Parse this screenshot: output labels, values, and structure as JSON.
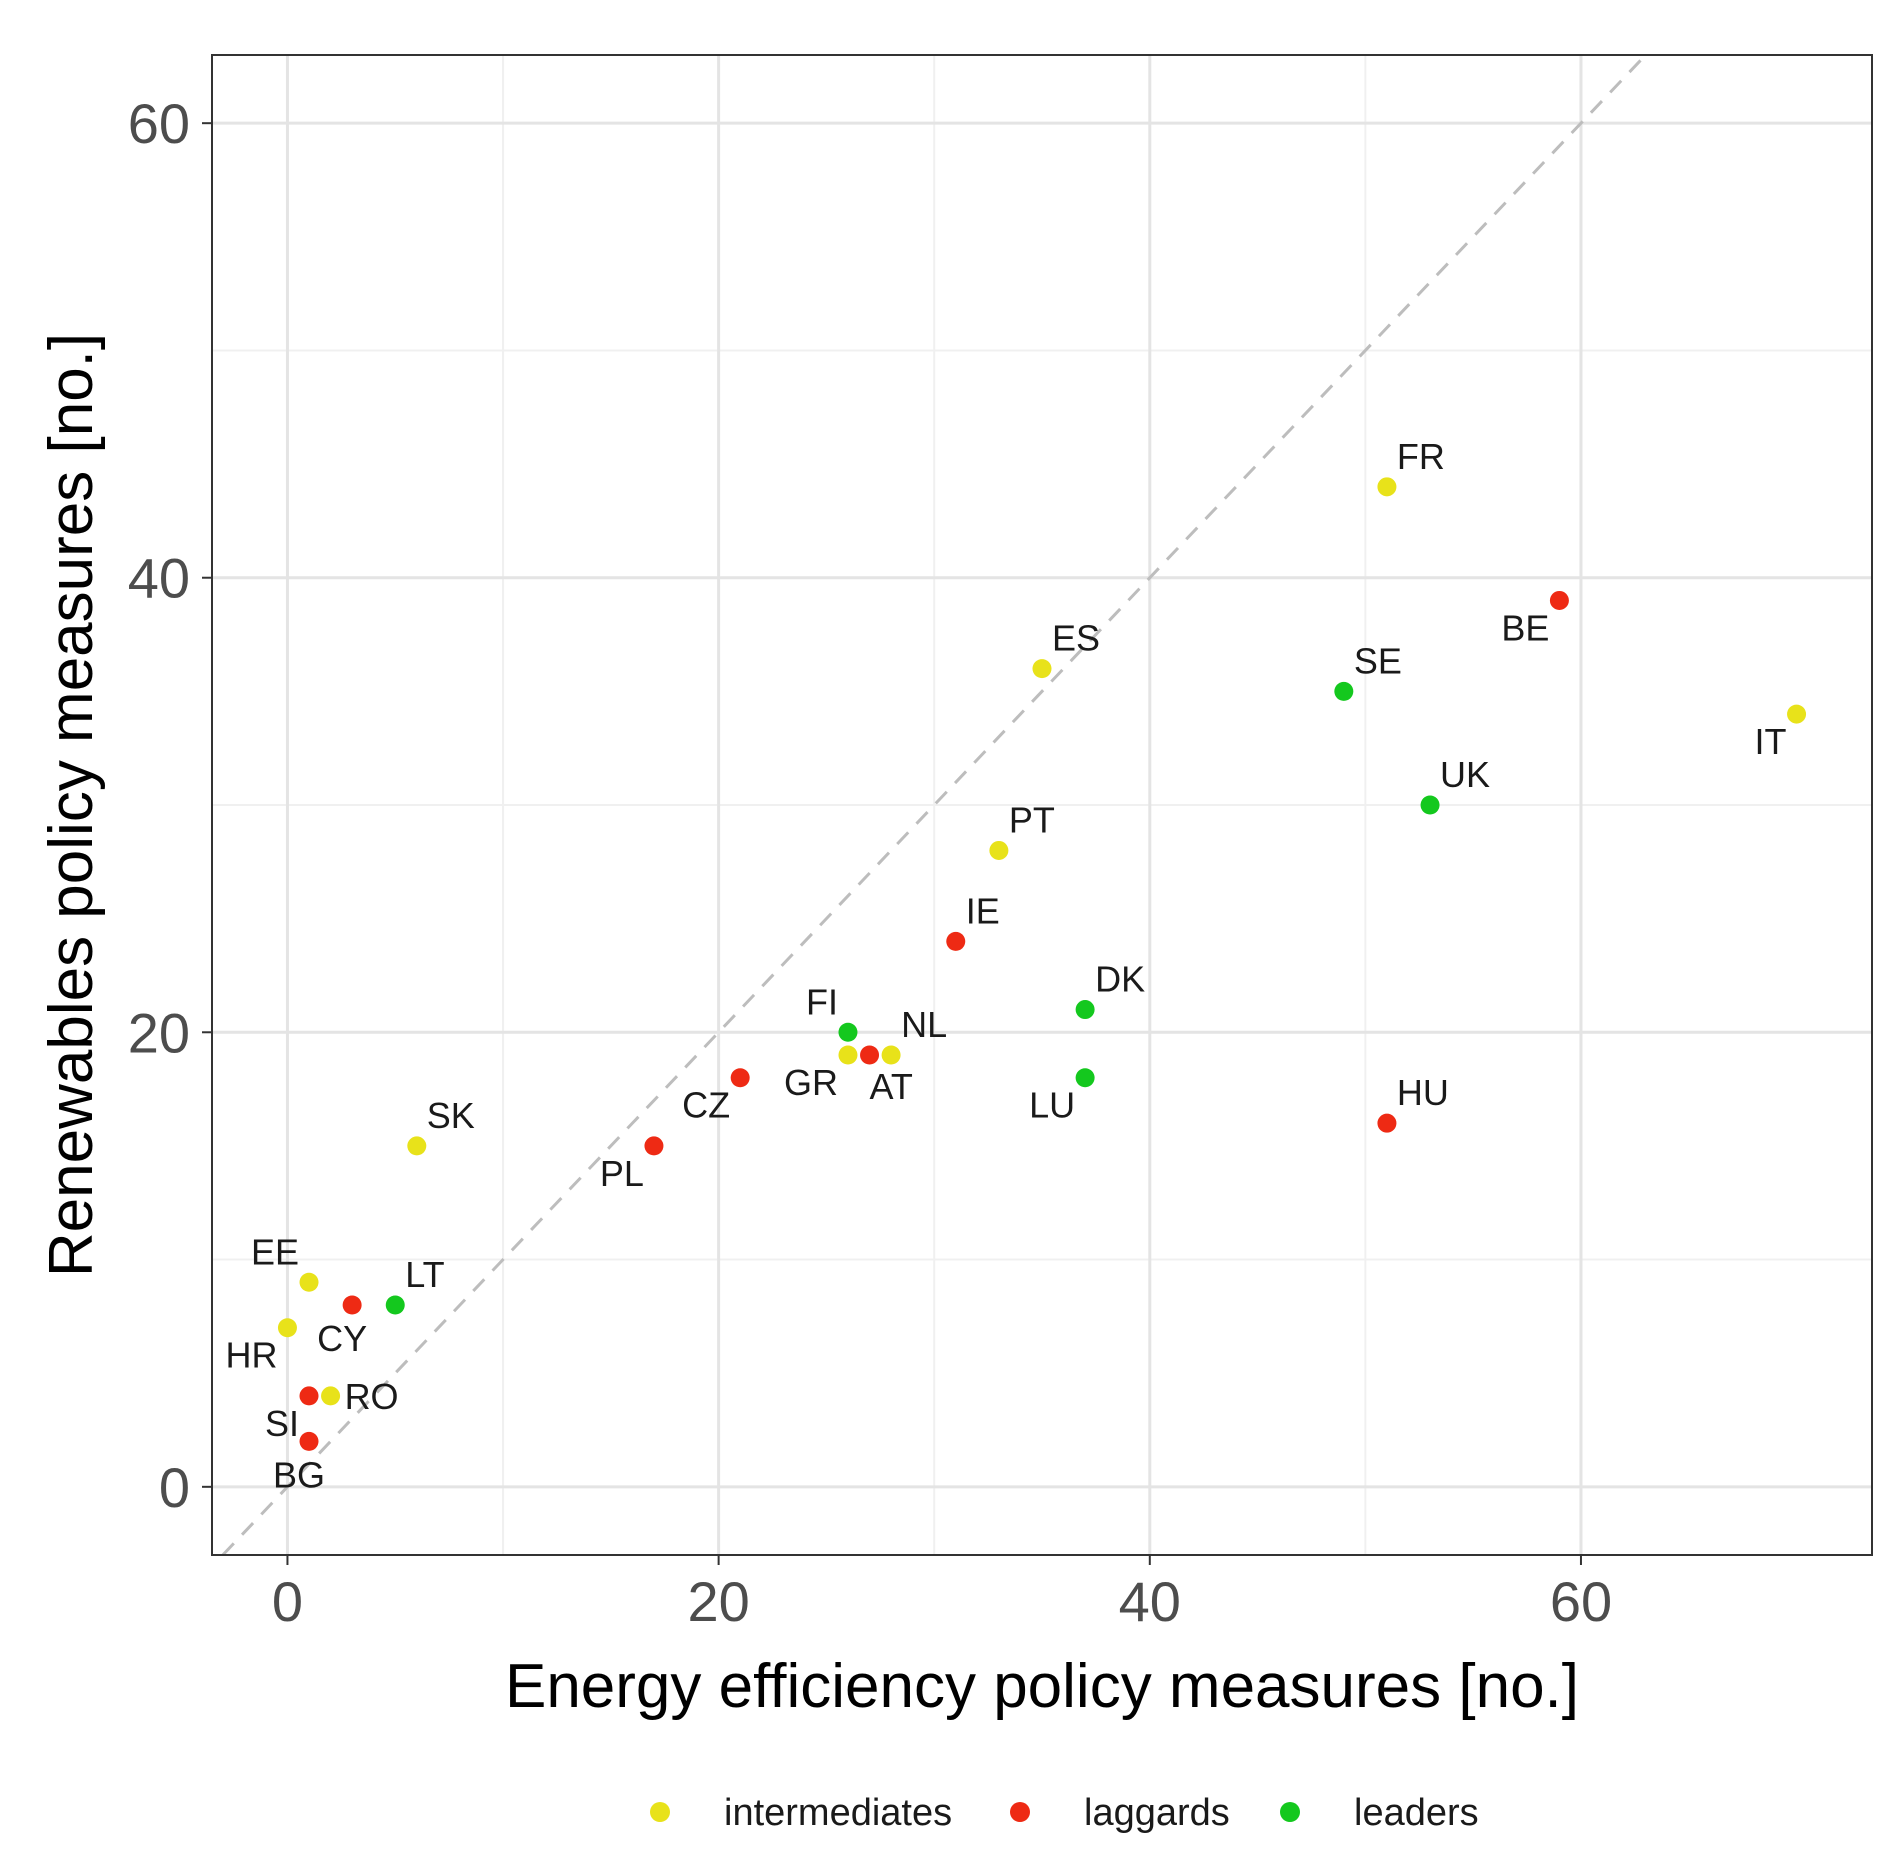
{
  "chart_data": {
    "type": "scatter",
    "title": "",
    "xlabel": "Energy efficiency policy measures [no.]",
    "ylabel": "Renewables policy measures [no.]",
    "xlim": [
      -3.5,
      73.5
    ],
    "ylim": [
      -3,
      63
    ],
    "x_ticks": [
      0,
      20,
      40,
      60
    ],
    "y_ticks": [
      0,
      20,
      40,
      60
    ],
    "x_tick_labels": [
      "0",
      "20",
      "40",
      "60"
    ],
    "y_tick_labels": [
      "0",
      "20",
      "40",
      "60"
    ],
    "grid": true,
    "reference_line": {
      "type": "identity",
      "style": "dashed",
      "color": "#bdbdbd"
    },
    "colors": {
      "intermediates": "#e8e21a",
      "laggards": "#ee2a14",
      "leaders": "#14c81e"
    },
    "legend": {
      "position": "bottom",
      "entries": [
        {
          "name": "intermediates",
          "color": "#e8e21a"
        },
        {
          "name": "laggards",
          "color": "#ee2a14"
        },
        {
          "name": "leaders",
          "color": "#14c81e"
        }
      ]
    },
    "points": [
      {
        "label": "FR",
        "x": 51,
        "y": 44,
        "group": "intermediates",
        "anchor": "ne"
      },
      {
        "label": "BE",
        "x": 59,
        "y": 39,
        "group": "laggards",
        "anchor": "sw"
      },
      {
        "label": "ES",
        "x": 35,
        "y": 36,
        "group": "intermediates",
        "anchor": "ne"
      },
      {
        "label": "SE",
        "x": 49,
        "y": 35,
        "group": "leaders",
        "anchor": "ne"
      },
      {
        "label": "IT",
        "x": 70,
        "y": 34,
        "group": "intermediates",
        "anchor": "sw"
      },
      {
        "label": "UK",
        "x": 53,
        "y": 30,
        "group": "leaders",
        "anchor": "ne"
      },
      {
        "label": "PT",
        "x": 33,
        "y": 28,
        "group": "intermediates",
        "anchor": "ne"
      },
      {
        "label": "IE",
        "x": 31,
        "y": 24,
        "group": "laggards",
        "anchor": "ne"
      },
      {
        "label": "DK",
        "x": 37,
        "y": 21,
        "group": "leaders",
        "anchor": "ne"
      },
      {
        "label": "FI",
        "x": 26,
        "y": 20,
        "group": "leaders",
        "anchor": "nw"
      },
      {
        "label": "NL",
        "x": 28,
        "y": 19,
        "group": "intermediates",
        "anchor": "ne"
      },
      {
        "label": "GR",
        "x": 26,
        "y": 19,
        "group": "intermediates",
        "anchor": "sw"
      },
      {
        "label": "AT",
        "x": 27,
        "y": 19,
        "group": "laggards",
        "anchor": "se"
      },
      {
        "label": "CZ",
        "x": 21,
        "y": 18,
        "group": "laggards",
        "anchor": "sw"
      },
      {
        "label": "LU",
        "x": 37,
        "y": 18,
        "group": "leaders",
        "anchor": "sw"
      },
      {
        "label": "HU",
        "x": 51,
        "y": 16,
        "group": "laggards",
        "anchor": "ne"
      },
      {
        "label": "SK",
        "x": 6,
        "y": 15,
        "group": "intermediates",
        "anchor": "ne"
      },
      {
        "label": "PL",
        "x": 17,
        "y": 15,
        "group": "laggards",
        "anchor": "sw"
      },
      {
        "label": "EE",
        "x": 1,
        "y": 9,
        "group": "intermediates",
        "anchor": "nw"
      },
      {
        "label": "LT",
        "x": 5,
        "y": 8,
        "group": "leaders",
        "anchor": "ne"
      },
      {
        "label": "CY",
        "x": 3,
        "y": 8,
        "group": "laggards",
        "anchor": "s"
      },
      {
        "label": "HR",
        "x": 0,
        "y": 7,
        "group": "intermediates",
        "anchor": "sw"
      },
      {
        "label": "SI",
        "x": 1,
        "y": 4,
        "group": "laggards",
        "anchor": "sw"
      },
      {
        "label": "RO",
        "x": 2,
        "y": 4,
        "group": "intermediates",
        "anchor": "e"
      },
      {
        "label": "BG",
        "x": 1,
        "y": 2,
        "group": "laggards",
        "anchor": "s"
      }
    ]
  }
}
